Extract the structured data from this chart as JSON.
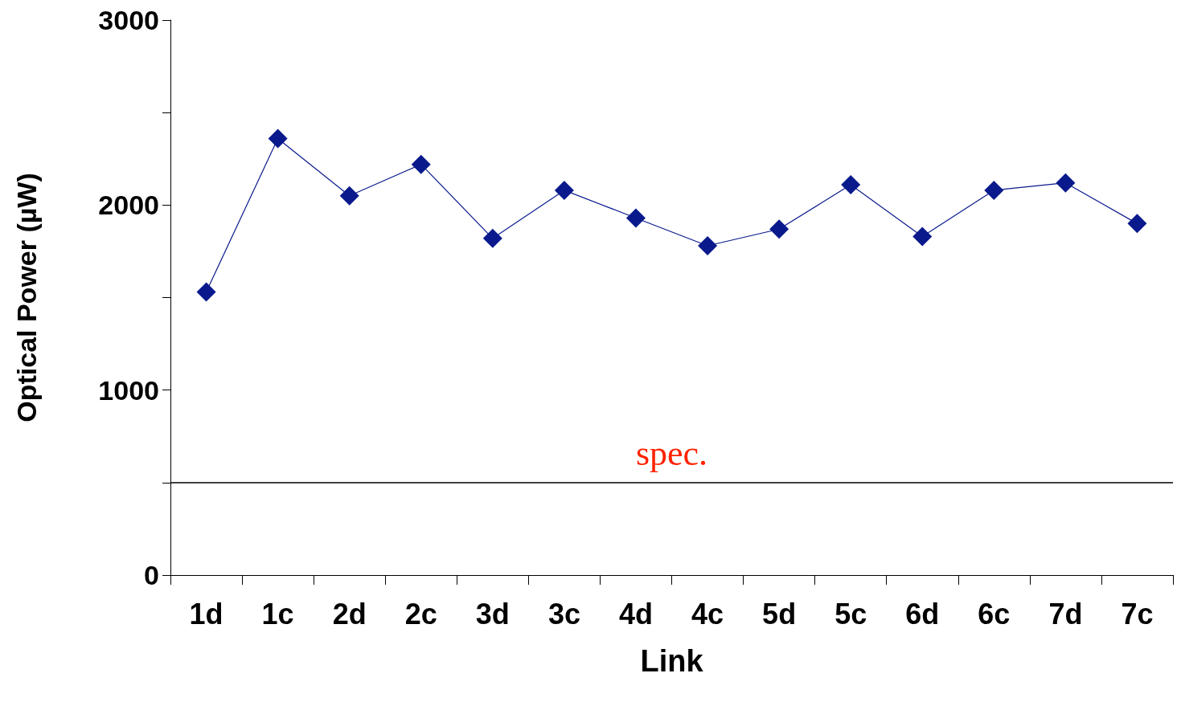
{
  "chart_data": {
    "type": "line",
    "xlabel": "Link",
    "ylabel": "Optical Power (µW)",
    "categories": [
      "1d",
      "1c",
      "2d",
      "2c",
      "3d",
      "3c",
      "4d",
      "4c",
      "5d",
      "5c",
      "6d",
      "6c",
      "7d",
      "7c"
    ],
    "values": [
      1530,
      2360,
      2050,
      2220,
      1820,
      2080,
      1930,
      1780,
      1870,
      2110,
      1830,
      2080,
      2120,
      1900
    ],
    "color": "#0a1a8c",
    "marker": "diamond",
    "line_style": "solid",
    "grid": false,
    "ylim": [
      0,
      3000
    ],
    "yticks": [
      0,
      {
        "value": 500,
        "label": null
      },
      1000,
      {
        "value": 1500,
        "label": null
      },
      2000,
      {
        "value": 2500,
        "label": null
      },
      3000
    ],
    "ref_lines": [
      {
        "axis": "y",
        "value": 500,
        "label": "spec.",
        "color": "#000000",
        "line_style": "solid"
      }
    ]
  }
}
